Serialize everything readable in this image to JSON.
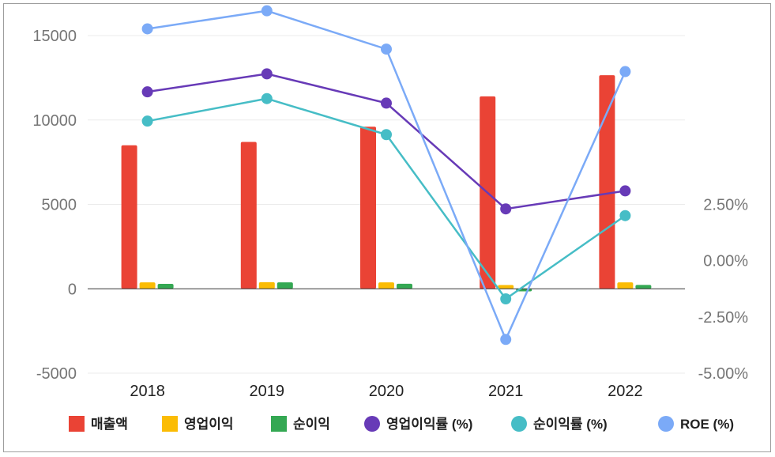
{
  "chart_data": {
    "type": "bar",
    "title": "",
    "categories": [
      "2018",
      "2019",
      "2020",
      "2021",
      "2022"
    ],
    "left_axis": {
      "ylim": [
        -5000,
        15000
      ],
      "ticks": [
        15000,
        10000,
        5000,
        0,
        -5000
      ],
      "tick_labels": [
        "15000",
        "10000",
        "5000",
        "0",
        "-5000"
      ]
    },
    "right_axis": {
      "ylim": [
        -5.0,
        10.0
      ],
      "ticks": [
        2.5,
        0.0,
        -2.5,
        -5.0
      ],
      "tick_labels": [
        "2.50%",
        "0.00%",
        "-2.50%",
        "-5.00%"
      ]
    },
    "grid": true,
    "legend_position": "bottom",
    "series": [
      {
        "name": "매출액",
        "type": "bar",
        "axis": "left",
        "color": "#ea4335",
        "values": [
          8500,
          8700,
          9600,
          11400,
          12650
        ]
      },
      {
        "name": "영업이익",
        "type": "bar",
        "axis": "left",
        "color": "#fbbc04",
        "values": [
          380,
          390,
          380,
          220,
          380
        ]
      },
      {
        "name": "순이익",
        "type": "bar",
        "axis": "left",
        "color": "#34a853",
        "values": [
          290,
          380,
          300,
          -150,
          230
        ]
      },
      {
        "name": "영업이익률 (%)",
        "type": "line",
        "axis": "right",
        "color": "#673ab7",
        "values": [
          7.5,
          8.3,
          7.0,
          2.3,
          3.1
        ]
      },
      {
        "name": "순이익률 (%)",
        "type": "line",
        "axis": "right",
        "color": "#46bdc6",
        "values": [
          6.2,
          7.2,
          5.6,
          -1.7,
          2.0
        ]
      },
      {
        "name": "ROE (%)",
        "type": "line",
        "axis": "right",
        "color": "#7baaf7",
        "values": [
          10.3,
          11.1,
          9.4,
          -3.5,
          8.4
        ]
      }
    ]
  }
}
